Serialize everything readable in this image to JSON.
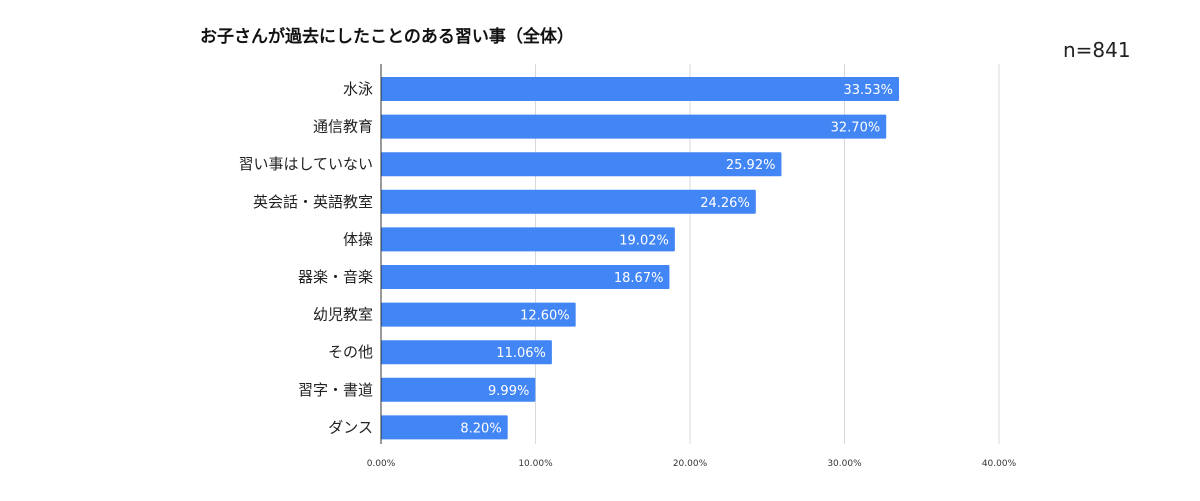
{
  "chart_data": {
    "type": "bar",
    "orientation": "horizontal",
    "title": "お子さんが過去にしたことのある習い事（全体）",
    "annotation": "n=841",
    "categories": [
      "水泳",
      "通信教育",
      "習い事はしていない",
      "英会話・英語教室",
      "体操",
      "器楽・音楽",
      "幼児教室",
      "その他",
      "習字・書道",
      "ダンス"
    ],
    "values": [
      33.53,
      32.7,
      25.92,
      24.26,
      19.02,
      18.67,
      12.6,
      11.06,
      9.99,
      8.2
    ],
    "value_labels": [
      "33.53%",
      "32.70%",
      "25.92%",
      "24.26%",
      "19.02%",
      "18.67%",
      "12.60%",
      "11.06%",
      "9.99%",
      "8.20%"
    ],
    "xlim": [
      0,
      40
    ],
    "xticks": [
      0,
      10,
      20,
      30,
      40
    ],
    "xtick_labels": [
      "0.00%",
      "10.00%",
      "20.00%",
      "30.00%",
      "40.00%"
    ],
    "grid": true,
    "legend": "none",
    "bar_color": "#4285F4"
  }
}
